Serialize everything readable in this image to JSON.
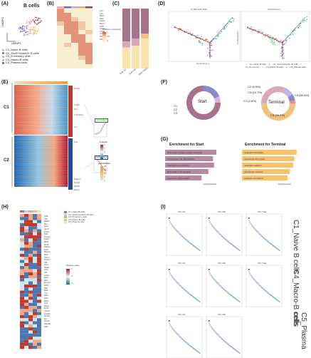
{
  "panels": {
    "A": {
      "letter": "(A)",
      "title": "B cells",
      "x_label": "UMAP1",
      "y_label": "UMAP2",
      "legend": [
        "C1_Naive B cells",
        "C2_Sox5+Vpreb3+ B cells",
        "C3_B memory cells",
        "C4_Macro-B cells",
        "C5_Plasma cells"
      ],
      "legend_colors": [
        "#f3a6a0",
        "#6b6bb8",
        "#c8a2d6",
        "#e6b050",
        "#9a3f6a"
      ]
    },
    "B": {
      "letter": "(B)",
      "legend_title": "Relative expression",
      "legend_ticks": [
        "1",
        "0.5",
        "0"
      ]
    },
    "C": {
      "letter": "(C)",
      "x_ticks": [
        "Bulk 1D",
        "Bulk 24h",
        "Bulk 7days"
      ]
    },
    "D": {
      "letter": "(D)",
      "subtitle": "by Monocle State",
      "x_label": "Component 1",
      "y_label": "Component 2",
      "legend_right": [
        "C1_Naive B cells",
        "C2_Sox5+Vpreb3+ B cells",
        "C3_B memory",
        "C4_Macro-B cells",
        "C5_Plasma cells"
      ]
    },
    "E": {
      "letter": "(E)",
      "cluster_labels": [
        "C1",
        "C2"
      ],
      "genes": [
        "Nuak1",
        "Cd83",
        "Myc",
        "Tnfrsf13b",
        "Jun",
        "Fos",
        "Ptger4",
        "Foxp1",
        "Zfp36",
        "Crem"
      ],
      "zscore_title": "Z-score",
      "zscore_ticks": [
        "2",
        "1",
        "0",
        "-1",
        "-2"
      ],
      "pseudotime_title": "pseudotime",
      "pseudotime_ticks": [
        "20",
        "15",
        "10",
        "5",
        "0"
      ],
      "box_labels": [
        "Cell state 1",
        "Cell state 2"
      ]
    },
    "F": {
      "letter": "(F)",
      "left_title": "Start",
      "right_title": "Terminal",
      "left_labels": [
        "C1",
        "C2",
        "C3"
      ],
      "right_labels": [
        "C1 (2.8%)",
        "C2 (6.5%)",
        "C3 (10.7%)",
        "C4 (50.5%)",
        "C5 (30.3%)"
      ]
    },
    "G": {
      "letter": "(G)",
      "left_title": "Enrichment for Start",
      "right_title": "Enrichment for Terminal",
      "left_terms": [
        "MHC class II protein complex assembly",
        "mononuclear cell differentiation",
        "interleukin-12 production",
        "alpha-beta T cell activation",
        "lymphocyte differentiation"
      ],
      "right_terms": [
        "neutrophil chemotaxis",
        "granulocyte chemotaxis",
        "neutrophil migration",
        "granulocyte migration",
        "leukocyte chemotaxis"
      ],
      "x_label": "-log10(pvalue)",
      "left_values": [
        4.5,
        4.2,
        4.3,
        3.8,
        3.2
      ],
      "right_values": [
        4.8,
        4.6,
        4.5,
        4.2,
        4.0
      ]
    },
    "H": {
      "letter": "(H)",
      "legend": [
        "C1_Naive B cells",
        "C2_Sox5+Vpreb3+ B cells",
        "C3_B memory cells",
        "C4_Macro-B cells",
        "C5_Plasma cells"
      ],
      "legend_title": "Relative value",
      "legend_ticks": [
        "1",
        "0",
        "-1"
      ]
    },
    "I": {
      "letter": "(I)",
      "row_labels": [
        "C1_Naive B cells",
        "C4_Macro-B cells",
        "C5_Plasma cells"
      ],
      "col_titles": [
        "IOH 1D",
        "IOH 24h",
        "IOH 7day"
      ],
      "x_label": "Regulation Rank",
      "y_label": "Regulon activity"
    }
  }
}
